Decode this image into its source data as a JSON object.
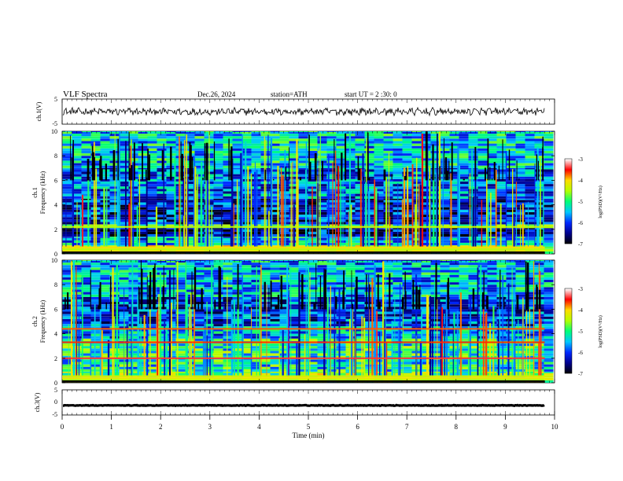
{
  "header": {
    "title": "VLF  Spectra",
    "date": "Dec.26, 2024",
    "station": "station=ATH",
    "start_ut": "start  UT  =   2  :30: 0"
  },
  "chart_data": [
    {
      "type": "line",
      "panel": "ch1-waveform",
      "ylabel": "ch.1(V)",
      "ylim": [
        -5,
        5
      ],
      "yticks": [
        "5",
        "-5"
      ],
      "xlim": [
        0,
        10
      ],
      "level": 0,
      "grid": false
    },
    {
      "type": "heatmap",
      "panel": "ch1-spectrogram",
      "ylabel_line1": "ch.1",
      "ylabel_line2": "Frequency  (kHz)",
      "ylim": [
        0,
        10
      ],
      "yticks": [
        "0",
        "2",
        "4",
        "6",
        "8",
        "10"
      ],
      "xlim": [
        0,
        9.8
      ],
      "bands": [
        {
          "from": 0.0,
          "to": 0.7,
          "logpsd": -4.6
        },
        {
          "from": 0.7,
          "to": 1.4,
          "logpsd": -5.6
        },
        {
          "from": 1.4,
          "to": 2.1,
          "logpsd": -6.4
        },
        {
          "from": 2.1,
          "to": 2.4,
          "logpsd": -5.0
        },
        {
          "from": 2.4,
          "to": 4.5,
          "logpsd": -6.2
        },
        {
          "from": 4.5,
          "to": 7.0,
          "logpsd": -5.8
        },
        {
          "from": 7.0,
          "to": 10.0,
          "logpsd": -5.4
        }
      ],
      "lines": [
        {
          "freq": 2.2,
          "logpsd": -4.4
        },
        {
          "freq": 0.5,
          "logpsd": -3.9
        }
      ],
      "colorbar": {
        "label": "log(PSD)(V²/Hz)",
        "range": [
          -7,
          -3
        ],
        "ticks": [
          "-3",
          "-4",
          "-5",
          "-6",
          "-7"
        ]
      }
    },
    {
      "type": "heatmap",
      "panel": "ch2-spectrogram",
      "ylabel_line1": "ch.2",
      "ylabel_line2": "Frequency  (kHz)",
      "ylim": [
        0,
        10
      ],
      "yticks": [
        "0",
        "2",
        "4",
        "6",
        "8",
        "10"
      ],
      "xlim": [
        0,
        9.8
      ],
      "bands": [
        {
          "from": 0.0,
          "to": 0.9,
          "logpsd": -4.7
        },
        {
          "from": 0.9,
          "to": 2.0,
          "logpsd": -5.2
        },
        {
          "from": 2.0,
          "to": 3.6,
          "logpsd": -5.1
        },
        {
          "from": 3.6,
          "to": 4.6,
          "logpsd": -5.6
        },
        {
          "from": 4.6,
          "to": 7.0,
          "logpsd": -6.0
        },
        {
          "from": 7.0,
          "to": 10.0,
          "logpsd": -5.5
        }
      ],
      "lines": [
        {
          "freq": 2.0,
          "logpsd": -3.4
        },
        {
          "freq": 3.3,
          "logpsd": -3.6
        },
        {
          "freq": 4.4,
          "logpsd": -3.7
        }
      ],
      "colorbar": {
        "label": "log(PSD)(V²/Hz)",
        "range": [
          -7,
          -3
        ],
        "ticks": [
          "-3",
          "-4",
          "-5",
          "-6",
          "-7"
        ]
      }
    },
    {
      "type": "line",
      "panel": "ch3-waveform",
      "ylabel": "ch.3(V)",
      "ylim": [
        -5,
        5
      ],
      "yticks": [
        "5",
        "0",
        "-5"
      ],
      "xlim": [
        0,
        10
      ],
      "level": -1.2,
      "grid": false
    }
  ],
  "x_axis": {
    "label": "Time  (min)",
    "ticks": [
      "0",
      "1",
      "2",
      "3",
      "4",
      "5",
      "6",
      "7",
      "8",
      "9",
      "10"
    ]
  }
}
